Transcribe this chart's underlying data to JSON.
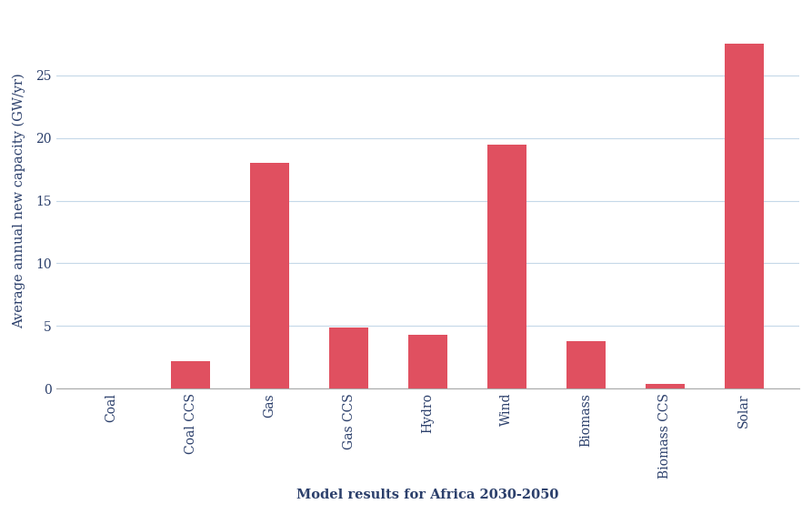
{
  "categories": [
    "Coal",
    "Coal CCS",
    "Gas",
    "Gas CCS",
    "Hydro",
    "Wind",
    "Biomass",
    "Biomass CCS",
    "Solar"
  ],
  "values": [
    0.02,
    2.2,
    18.0,
    4.9,
    4.3,
    19.5,
    3.8,
    0.35,
    27.5
  ],
  "bar_color": "#e05060",
  "ylabel": "Average annual new capacity (GW/yr)",
  "xlabel": "Model results for Africa 2030-2050",
  "ylim": [
    0,
    30
  ],
  "yticks": [
    0,
    5,
    10,
    15,
    20,
    25
  ],
  "background_color": "#ffffff",
  "grid_color": "#c5d8e8",
  "label_color": "#2b3f6b",
  "ylabel_fontsize": 10.5,
  "xlabel_fontsize": 10.5,
  "tick_fontsize": 10,
  "bar_width": 0.5
}
